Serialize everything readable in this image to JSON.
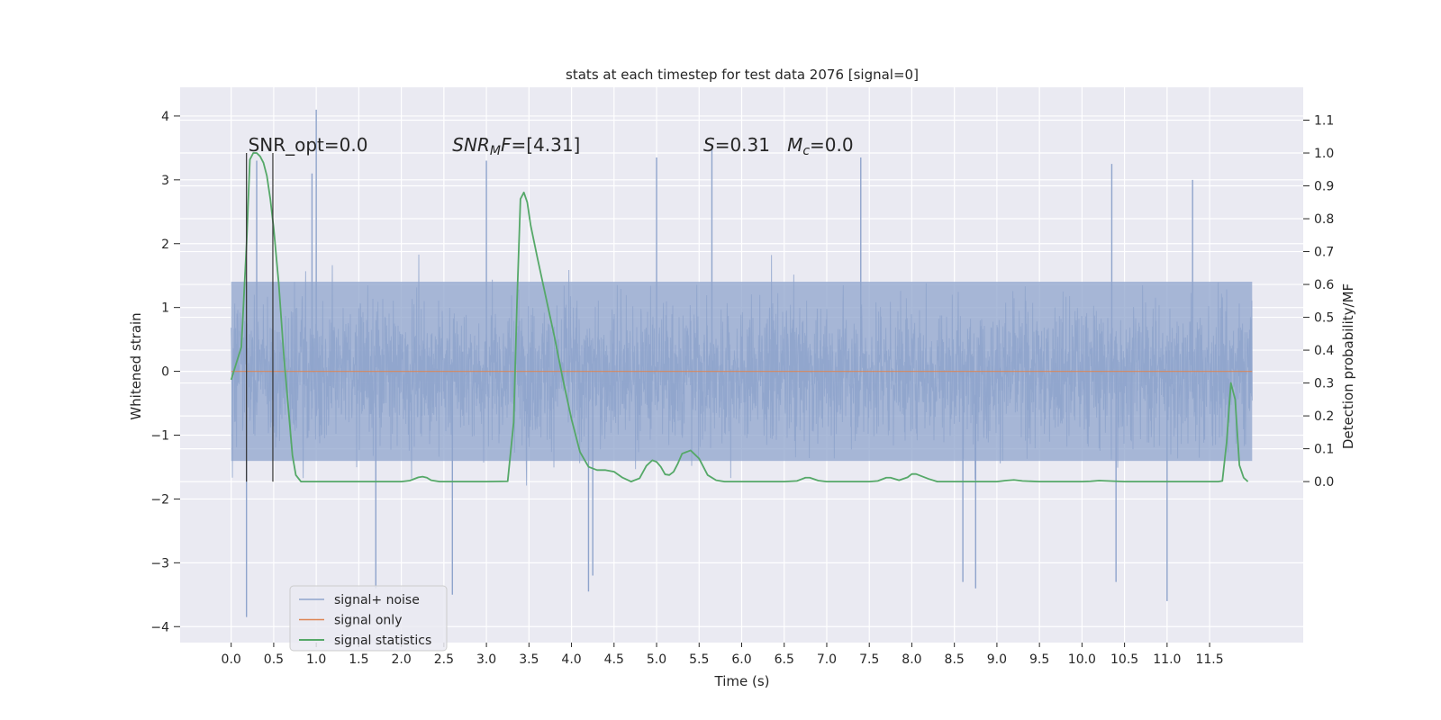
{
  "chart_data": {
    "type": "line",
    "title": "stats at each timestep for test data 2076 [signal=0]",
    "xlabel": "Time (s)",
    "ylabel": "Whitened strain",
    "y2label": "Detection probability/MF",
    "xlim": [
      -0.6,
      12.6
    ],
    "ylim": [
      -4.25,
      4.45
    ],
    "y2lim": [
      -0.49,
      1.2
    ],
    "x_ticks": [
      0.0,
      0.5,
      1.0,
      1.5,
      2.0,
      2.5,
      3.0,
      3.5,
      4.0,
      4.5,
      5.0,
      5.5,
      6.0,
      6.5,
      7.0,
      7.5,
      8.0,
      8.5,
      9.0,
      9.5,
      10.0,
      10.5,
      11.0,
      11.5
    ],
    "x_tick_labels": [
      "0.0",
      "0.5",
      "1.0",
      "1.5",
      "2.0",
      "2.5",
      "3.0",
      "3.5",
      "4.0",
      "4.5",
      "5.0",
      "5.5",
      "6.0",
      "6.5",
      "7.0",
      "7.5",
      "8.0",
      "8.5",
      "9.0",
      "9.5",
      "10.0",
      "10.5",
      "11.0",
      "11.5"
    ],
    "y_ticks": [
      4,
      3,
      2,
      1,
      0,
      -1,
      -2,
      -3,
      -4
    ],
    "y_tick_labels": [
      "4",
      "3",
      "2",
      "1",
      "0",
      "−1",
      "−2",
      "−3",
      "−4"
    ],
    "y2_ticks": [
      1.1,
      1.0,
      0.9,
      0.8,
      0.7,
      0.6,
      0.5,
      0.4,
      0.3,
      0.2,
      0.1,
      0.0
    ],
    "y2_tick_labels": [
      "1.1",
      "1.0",
      "0.9",
      "0.8",
      "0.7",
      "0.6",
      "0.5",
      "0.4",
      "0.3",
      "0.2",
      "0.1",
      "0.0"
    ],
    "grid": true,
    "legend_position": "lower-left",
    "series": [
      {
        "name": "signal+ noise",
        "color": "#8fa4cc",
        "axis": "left",
        "kind": "dense-noise",
        "x_range": [
          0.0,
          12.0
        ],
        "envelope": [
          -1.8,
          1.8
        ],
        "spikes": [
          {
            "x": 0.18,
            "y": -3.85
          },
          {
            "x": 0.3,
            "y": 3.3
          },
          {
            "x": 0.95,
            "y": 3.1
          },
          {
            "x": 1.0,
            "y": 4.1
          },
          {
            "x": 1.7,
            "y": -3.4
          },
          {
            "x": 2.6,
            "y": -3.5
          },
          {
            "x": 3.0,
            "y": 3.3
          },
          {
            "x": 4.2,
            "y": -3.45
          },
          {
            "x": 4.25,
            "y": -3.2
          },
          {
            "x": 5.0,
            "y": 3.35
          },
          {
            "x": 5.65,
            "y": 3.5
          },
          {
            "x": 7.4,
            "y": 3.35
          },
          {
            "x": 8.6,
            "y": -3.3
          },
          {
            "x": 8.75,
            "y": -3.4
          },
          {
            "x": 10.35,
            "y": 3.25
          },
          {
            "x": 10.4,
            "y": -3.3
          },
          {
            "x": 11.0,
            "y": -3.6
          },
          {
            "x": 11.3,
            "y": 3.0
          }
        ]
      },
      {
        "name": "signal only",
        "color": "#dd8452",
        "axis": "left",
        "x": [
          0.0,
          12.0
        ],
        "y": [
          0.0,
          0.0
        ]
      },
      {
        "name": "signal statistics",
        "color": "#55a868",
        "axis": "right",
        "x": [
          0.0,
          0.12,
          0.18,
          0.22,
          0.26,
          0.3,
          0.34,
          0.38,
          0.42,
          0.46,
          0.5,
          0.56,
          0.62,
          0.68,
          0.72,
          0.76,
          0.82,
          1.0,
          1.5,
          2.0,
          2.1,
          2.2,
          2.25,
          2.3,
          2.35,
          2.45,
          2.6,
          3.0,
          3.25,
          3.32,
          3.36,
          3.4,
          3.44,
          3.48,
          3.52,
          3.6,
          3.7,
          3.8,
          3.9,
          4.0,
          4.1,
          4.2,
          4.3,
          4.4,
          4.5,
          4.6,
          4.7,
          4.8,
          4.88,
          4.95,
          5.0,
          5.05,
          5.1,
          5.15,
          5.2,
          5.25,
          5.3,
          5.4,
          5.5,
          5.55,
          5.6,
          5.7,
          5.8,
          6.0,
          6.3,
          6.5,
          6.65,
          6.75,
          6.8,
          6.9,
          7.0,
          7.5,
          7.6,
          7.7,
          7.75,
          7.85,
          7.95,
          8.0,
          8.05,
          8.1,
          8.2,
          8.3,
          8.5,
          9.0,
          9.1,
          9.2,
          9.3,
          9.5,
          10.0,
          10.1,
          10.2,
          10.3,
          10.5,
          11.0,
          11.5,
          11.6,
          11.65,
          11.7,
          11.75,
          11.8,
          11.85,
          11.9,
          11.95
        ],
        "y": [
          0.31,
          0.41,
          0.72,
          0.98,
          1.0,
          1.0,
          0.99,
          0.97,
          0.93,
          0.86,
          0.77,
          0.6,
          0.38,
          0.2,
          0.08,
          0.02,
          0.0,
          0.0,
          0.0,
          0.0,
          0.003,
          0.013,
          0.015,
          0.012,
          0.004,
          0.0,
          0.0,
          0.0,
          0.001,
          0.18,
          0.55,
          0.86,
          0.88,
          0.85,
          0.78,
          0.68,
          0.56,
          0.44,
          0.31,
          0.19,
          0.09,
          0.045,
          0.035,
          0.035,
          0.03,
          0.012,
          0.0,
          0.01,
          0.048,
          0.065,
          0.06,
          0.045,
          0.022,
          0.02,
          0.03,
          0.055,
          0.085,
          0.095,
          0.07,
          0.045,
          0.02,
          0.004,
          0.0,
          0.0,
          0.0,
          0.0,
          0.002,
          0.012,
          0.012,
          0.003,
          0.0,
          0.0,
          0.002,
          0.012,
          0.012,
          0.004,
          0.013,
          0.023,
          0.023,
          0.018,
          0.008,
          0.0,
          0.0,
          0.0,
          0.003,
          0.005,
          0.002,
          0.0,
          0.0,
          0.001,
          0.003,
          0.002,
          0.0,
          0.0,
          0.0,
          0.0,
          0.002,
          0.12,
          0.3,
          0.25,
          0.05,
          0.012,
          0.0
        ]
      }
    ],
    "vertical_markers": [
      {
        "x": 0.18,
        "y_from": 0.0,
        "y_to": 1.0,
        "axis": "right",
        "color": "#333333"
      },
      {
        "x": 0.49,
        "y_from": 0.0,
        "y_to": 1.0,
        "axis": "right",
        "color": "#333333"
      }
    ],
    "annotations": [
      {
        "text": "SNR_opt=0.0",
        "x": 0.2,
        "y": 1.0,
        "axis": "right"
      },
      {
        "text_parts": [
          {
            "t": "SNR",
            "i": true
          },
          {
            "t": "M",
            "i": true,
            "sub": true
          },
          {
            "t": "F",
            "i": true
          },
          {
            "t": "=[4.31]"
          }
        ],
        "x": 2.6,
        "y": 1.0,
        "axis": "right"
      },
      {
        "text_parts": [
          {
            "t": "S",
            "i": true
          },
          {
            "t": "=0.31   "
          },
          {
            "t": "M",
            "i": true
          },
          {
            "t": "c",
            "i": true,
            "sub": true
          },
          {
            "t": "=0.0"
          }
        ],
        "x": 5.55,
        "y": 1.0,
        "axis": "right"
      }
    ]
  }
}
